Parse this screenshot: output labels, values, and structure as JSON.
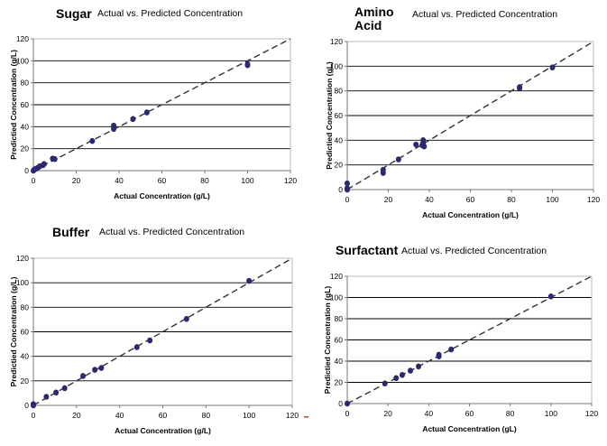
{
  "chart_data": [
    {
      "type": "scatter",
      "name_label": [
        "Sugar"
      ],
      "title": "Actual vs. Predicted Concentration",
      "xlabel": "Actual Concentration (g/L)",
      "ylabel": "Predictied Concentration (g/L)",
      "xlim": [
        0,
        120
      ],
      "ylim": [
        0,
        120
      ],
      "xticks": [
        "0",
        "20",
        "40",
        "60",
        "80",
        "100",
        "120"
      ],
      "yticks": [
        "0",
        "20",
        "40",
        "60",
        "80",
        "100",
        "120"
      ],
      "grid": "horizontal",
      "reference_line": "y = x (dashed)",
      "marker_color": "#2b2a6e",
      "points": [
        [
          0,
          0
        ],
        [
          0.5,
          1
        ],
        [
          1,
          1.5
        ],
        [
          2,
          2.5
        ],
        [
          3,
          4
        ],
        [
          4.5,
          5
        ],
        [
          5,
          6
        ],
        [
          9,
          11
        ],
        [
          10,
          10.5
        ],
        [
          27.5,
          27
        ],
        [
          37.5,
          41
        ],
        [
          37.5,
          38
        ],
        [
          46.5,
          47
        ],
        [
          53,
          53
        ],
        [
          100,
          97
        ],
        [
          100,
          96
        ]
      ]
    },
    {
      "type": "scatter",
      "name_label": [
        "Amino",
        "Acid"
      ],
      "title": "Actual vs. Predicted Concentration",
      "xlabel": "Actual Concentration (g/L)",
      "ylabel": "Predictied Concentration (gL)",
      "xlim": [
        0,
        120
      ],
      "ylim": [
        0,
        120
      ],
      "xticks": [
        "0",
        "20",
        "40",
        "60",
        "80",
        "100",
        "120"
      ],
      "yticks": [
        "0",
        "20",
        "40",
        "60",
        "80",
        "100",
        "120"
      ],
      "grid": "horizontal",
      "reference_line": "y = x (dashed)",
      "marker_color": "#2b2a6e",
      "points": [
        [
          0,
          5
        ],
        [
          0,
          1
        ],
        [
          0,
          0
        ],
        [
          17.5,
          16
        ],
        [
          17.5,
          13.5
        ],
        [
          25,
          24.5
        ],
        [
          33.5,
          36.5
        ],
        [
          36.5,
          36
        ],
        [
          37,
          40
        ],
        [
          37,
          38
        ],
        [
          37.5,
          35
        ],
        [
          84,
          83
        ],
        [
          84,
          82
        ],
        [
          100,
          99
        ]
      ]
    },
    {
      "type": "scatter",
      "name_label": [
        "Buffer"
      ],
      "title": "Actual vs. Predicted Concentration",
      "xlabel": "Actual Concentration (g/L)",
      "ylabel": "Predictied Concentration (g/L)",
      "xlim": [
        0,
        120
      ],
      "ylim": [
        0,
        120
      ],
      "xticks": [
        "0",
        "20",
        "40",
        "60",
        "80",
        "100",
        "120"
      ],
      "yticks": [
        "0",
        "20",
        "40",
        "60",
        "80",
        "100",
        "120"
      ],
      "grid": "horizontal",
      "reference_line": "y = x (dashed)",
      "marker_color": "#2b2a6e",
      "points": [
        [
          0,
          1
        ],
        [
          0,
          0
        ],
        [
          6,
          7
        ],
        [
          10.5,
          10.5
        ],
        [
          14.5,
          14
        ],
        [
          23,
          24
        ],
        [
          28.5,
          29
        ],
        [
          31.5,
          30.5
        ],
        [
          48,
          47.5
        ],
        [
          54,
          53
        ],
        [
          71,
          70.5
        ],
        [
          100,
          101.5
        ]
      ]
    },
    {
      "type": "scatter",
      "name_label": [
        "Surfactant"
      ],
      "title": "Actual vs. Predicted Concentration",
      "xlabel": "Actual Concentration (gL)",
      "ylabel": "Predictied Concentration (gL)",
      "xlim": [
        0,
        120
      ],
      "ylim": [
        0,
        120
      ],
      "xticks": [
        "0",
        "20",
        "40",
        "60",
        "80",
        "100",
        "120"
      ],
      "yticks": [
        "0",
        "20",
        "40",
        "60",
        "80",
        "100",
        "120"
      ],
      "grid": "horizontal",
      "reference_line": "y = x (dashed)",
      "marker_color": "#2b2a6e",
      "points": [
        [
          0,
          0
        ],
        [
          18.5,
          19
        ],
        [
          24,
          24
        ],
        [
          27,
          27
        ],
        [
          31,
          31
        ],
        [
          35,
          35
        ],
        [
          45,
          44.5
        ],
        [
          45,
          46
        ],
        [
          51,
          51
        ],
        [
          100,
          101
        ]
      ]
    }
  ]
}
